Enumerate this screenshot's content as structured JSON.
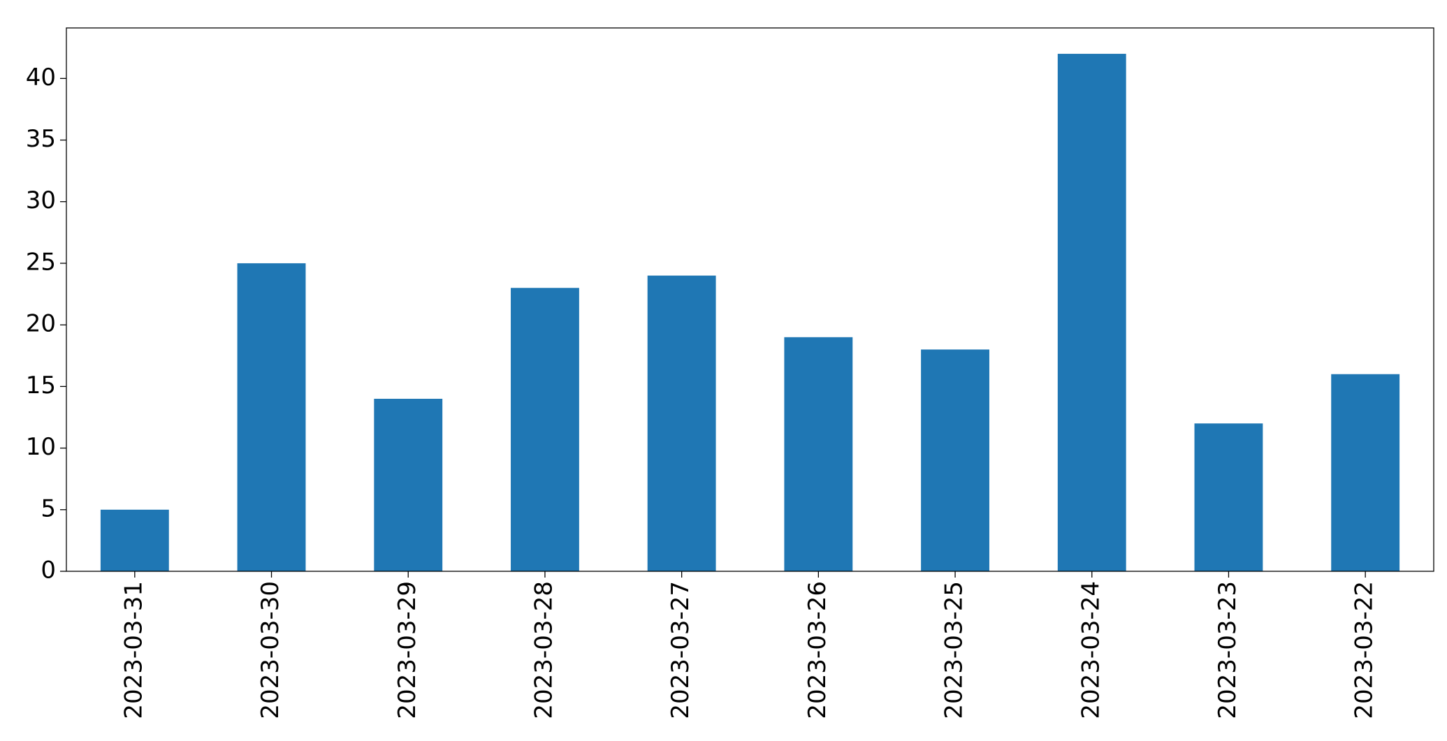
{
  "chart_data": {
    "type": "bar",
    "categories": [
      "2023-03-31",
      "2023-03-30",
      "2023-03-29",
      "2023-03-28",
      "2023-03-27",
      "2023-03-26",
      "2023-03-25",
      "2023-03-24",
      "2023-03-23",
      "2023-03-22"
    ],
    "values": [
      5,
      25,
      14,
      23,
      24,
      19,
      18,
      42,
      12,
      16
    ],
    "color": "#1f77b4",
    "ylim": [
      0,
      44.1
    ],
    "yticks": [
      0,
      5,
      10,
      15,
      20,
      25,
      30,
      35,
      40
    ],
    "grid": false
  }
}
